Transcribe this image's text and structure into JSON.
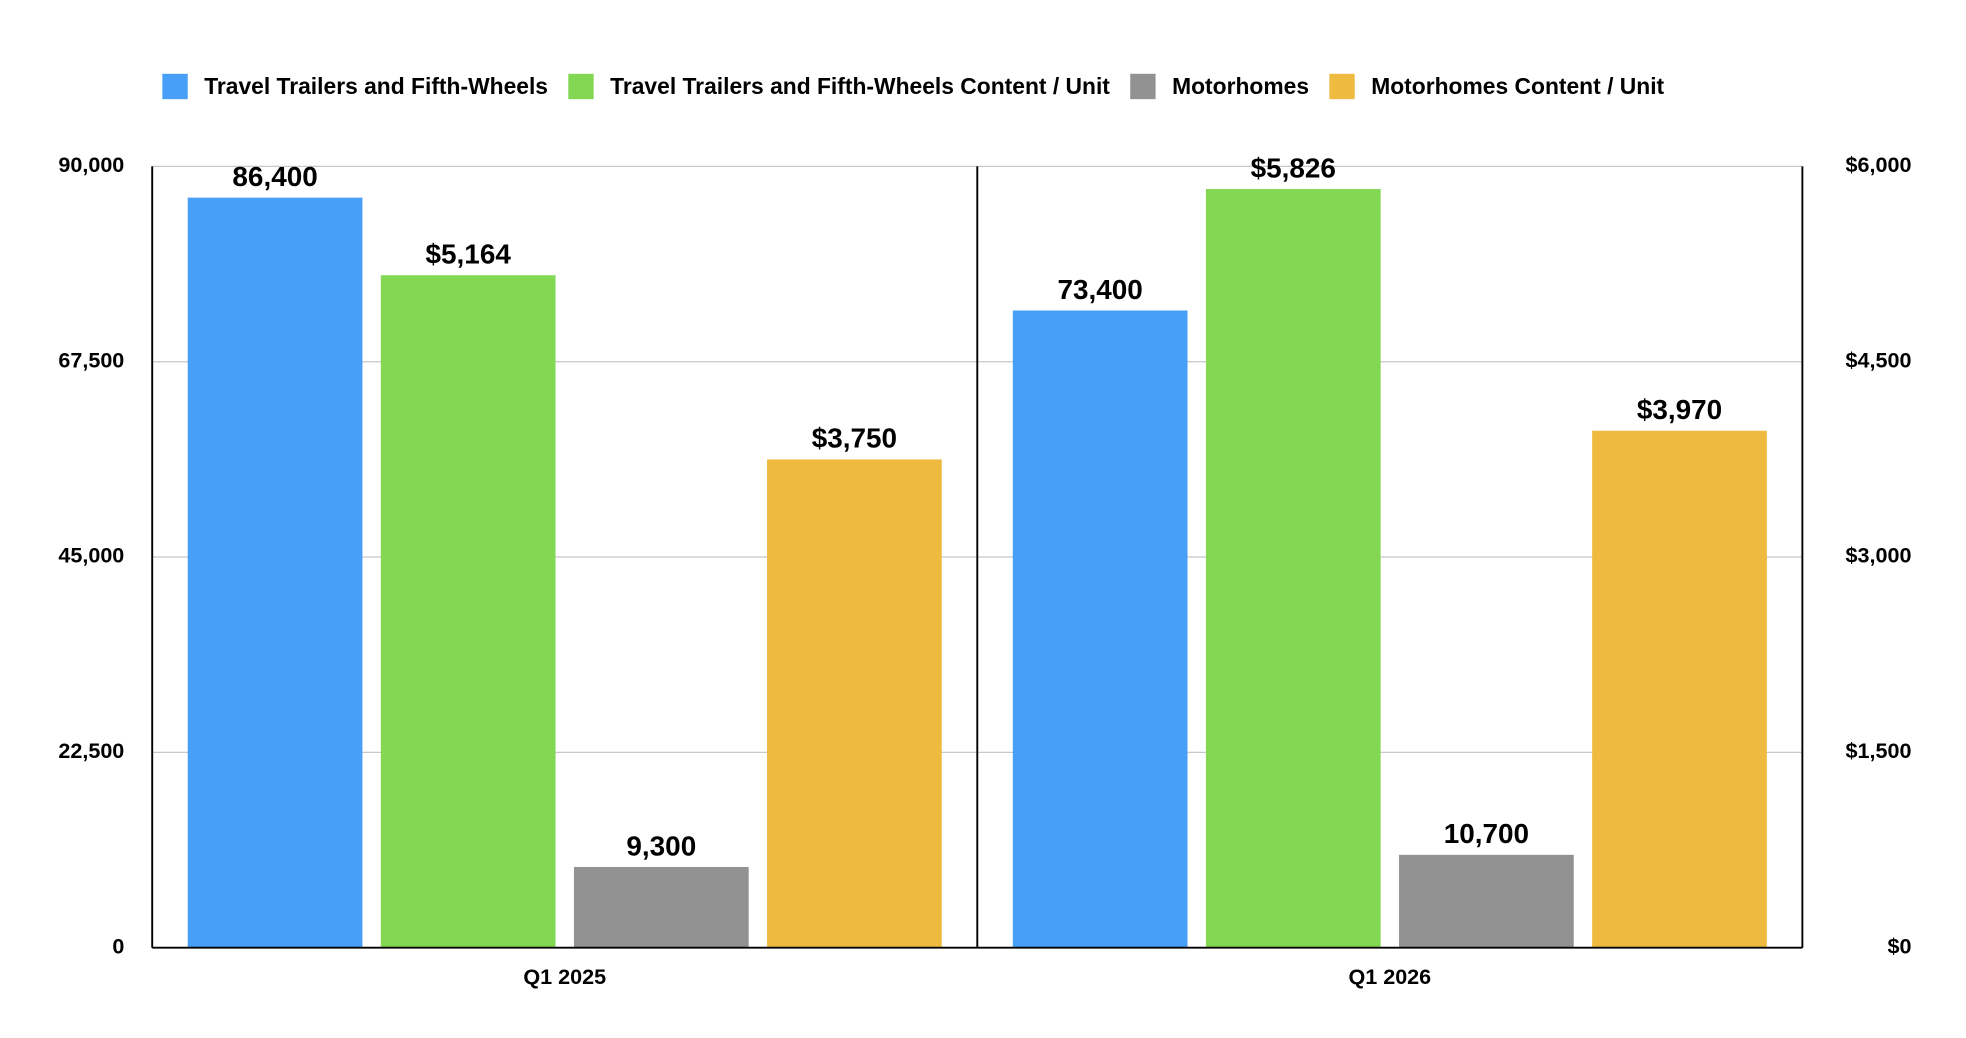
{
  "chart_data": {
    "type": "bar",
    "categories": [
      "Q1 2025",
      "Q1 2026"
    ],
    "series": [
      {
        "name": "Travel Trailers and Fifth-Wheels",
        "color": "#479ff8",
        "values": [
          86400,
          73400
        ],
        "value_labels": [
          "86,400",
          "73,400"
        ]
      },
      {
        "name": "Travel Trailers and Fifth-Wheels Content / Unit",
        "color": "#83d853",
        "axis": "y2",
        "values": [
          5164,
          5826
        ],
        "value_labels": [
          "$5,164",
          "$5,826"
        ]
      },
      {
        "name": "Motorhomes",
        "color": "#929292",
        "values": [
          9300,
          10700
        ],
        "value_labels": [
          "9,300",
          "10,700"
        ]
      },
      {
        "name": "Motorhomes Content / Unit",
        "color": "#eebb40",
        "axis": "y2",
        "values": [
          3750,
          3970
        ],
        "value_labels": [
          "$3,750",
          "$3,970"
        ]
      }
    ],
    "ylim": [
      0,
      90000
    ],
    "yticks": [
      0,
      {
        "value": 22500,
        "label": "22,500"
      },
      {
        "value": 45000,
        "label": "45,000"
      },
      {
        "value": 67500,
        "label": "67,500"
      },
      {
        "value": 90000,
        "label": "90,000"
      }
    ],
    "y2lim": [
      0,
      6000
    ],
    "y2ticks": [
      {
        "value": 0,
        "label": "$0"
      },
      {
        "value": 1500,
        "label": "$1,500"
      },
      {
        "value": 3000,
        "label": "$3,000"
      },
      {
        "value": 4500,
        "label": "$4,500"
      },
      {
        "value": 6000,
        "label": "$6,000"
      }
    ],
    "grid": true,
    "legend": "top"
  }
}
